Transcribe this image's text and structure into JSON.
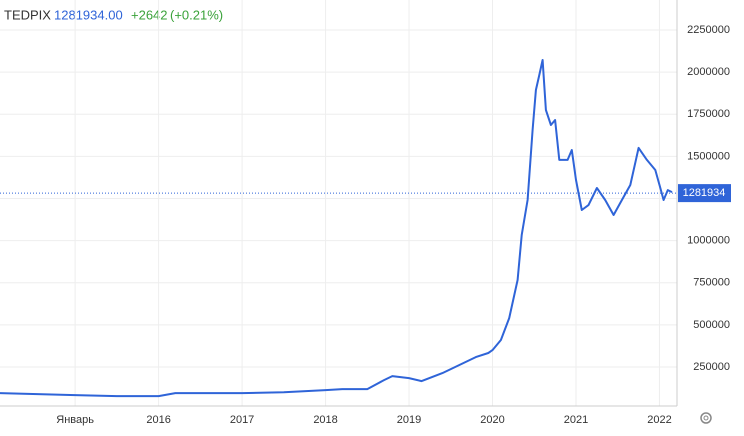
{
  "header": {
    "symbol": "TEDPIX",
    "price": "1281934.00",
    "change": "+2642",
    "change_pct": "(+0.21%)"
  },
  "chart_data": {
    "type": "line",
    "x": [
      2014.1,
      2015.0,
      2015.5,
      2016.0,
      2016.2,
      2017.0,
      2017.5,
      2018.0,
      2018.2,
      2018.5,
      2018.7,
      2018.8,
      2019.0,
      2019.15,
      2019.4,
      2019.6,
      2019.8,
      2019.95,
      2020.0,
      2020.1,
      2020.2,
      2020.3,
      2020.35,
      2020.42,
      2020.48,
      2020.52,
      2020.56,
      2020.6,
      2020.64,
      2020.7,
      2020.75,
      2020.8,
      2020.9,
      2020.95,
      2021.0,
      2021.07,
      2021.15,
      2021.25,
      2021.35,
      2021.45,
      2021.55,
      2021.65,
      2021.75,
      2021.85,
      2021.95,
      2022.0,
      2022.05,
      2022.1,
      2022.15
    ],
    "series": [
      {
        "name": "TEDPIX",
        "color": "#2f64d8",
        "values": [
          95000,
          83000,
          77000,
          77000,
          95000,
          95000,
          100000,
          113000,
          119000,
          119000,
          172000,
          196000,
          184000,
          166000,
          214000,
          261000,
          309000,
          333000,
          350000,
          410000,
          540000,
          766000,
          1033000,
          1241000,
          1657000,
          1894000,
          1983000,
          2072000,
          1775000,
          1686000,
          1716000,
          1479000,
          1479000,
          1538000,
          1360000,
          1182000,
          1211000,
          1312000,
          1241000,
          1152000,
          1241000,
          1330000,
          1550000,
          1479000,
          1419000,
          1330000,
          1241000,
          1300000,
          1288000
        ]
      }
    ],
    "xlim": [
      2014.1,
      2022.21
    ],
    "xticks": [
      {
        "value": 2015,
        "label": "Январь"
      },
      2016,
      2017,
      2018,
      2019,
      2020,
      2021,
      2022
    ],
    "ylim": [
      18500,
      2428000
    ],
    "yticks": [
      250000,
      500000,
      750000,
      1000000,
      1250000,
      1500000,
      1750000,
      2000000,
      2250000
    ],
    "last_price": 1281934,
    "grid": true
  }
}
